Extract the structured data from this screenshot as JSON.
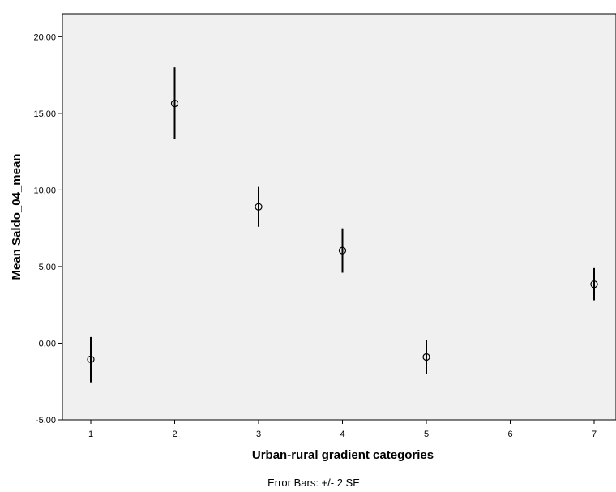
{
  "chart_data": {
    "type": "scatter",
    "variant": "error-bar",
    "title": "",
    "xlabel": "Urban-rural gradient categories",
    "ylabel": "Mean Saldo_04_mean",
    "footnote": "Error Bars: +/- 2 SE",
    "x_categories": [
      "1",
      "2",
      "3",
      "4",
      "5",
      "6",
      "7"
    ],
    "ylim": [
      -5,
      21.5
    ],
    "y_ticks": [
      -5,
      0,
      5,
      10,
      15,
      20
    ],
    "y_tick_labels": [
      "-5,00",
      "0,00",
      "5,00",
      "10,00",
      "15,00",
      "20,00"
    ],
    "points": [
      {
        "x": 1,
        "mean": -1.05,
        "lower": -2.55,
        "upper": 0.4
      },
      {
        "x": 2,
        "mean": 15.65,
        "lower": 13.3,
        "upper": 18.0
      },
      {
        "x": 3,
        "mean": 8.9,
        "lower": 7.6,
        "upper": 10.2
      },
      {
        "x": 4,
        "mean": 6.05,
        "lower": 4.6,
        "upper": 7.5
      },
      {
        "x": 5,
        "mean": -0.9,
        "lower": -2.0,
        "upper": 0.2
      },
      {
        "x": 7,
        "mean": 3.85,
        "lower": 2.8,
        "upper": 4.9
      }
    ],
    "grid": false,
    "plot_background": "#f0f0f0",
    "marker": "open-circle",
    "marker_color": "#000000"
  }
}
